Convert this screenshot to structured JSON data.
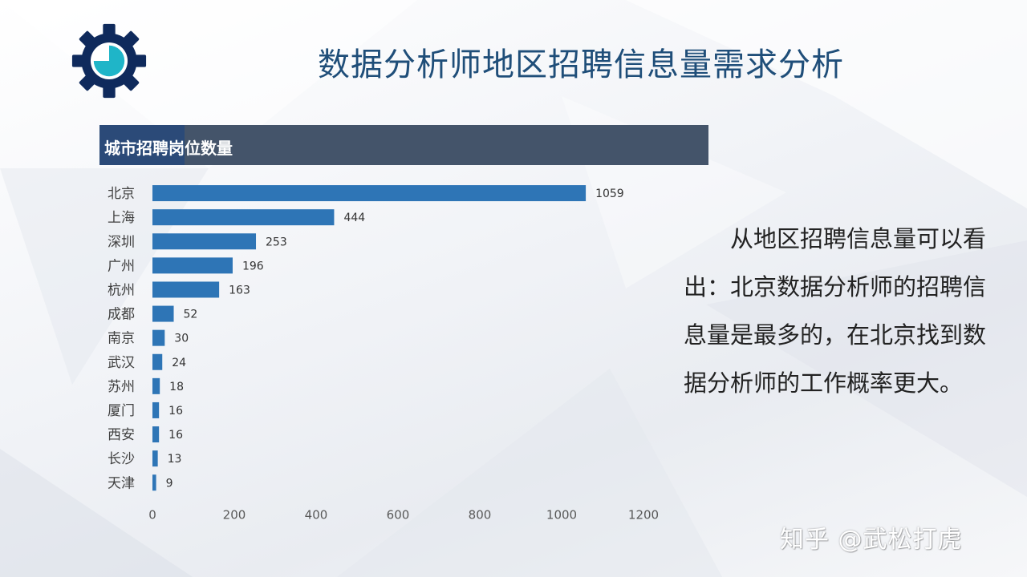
{
  "title": "数据分析师地区招聘信息量需求分析",
  "chart_header": "城市招聘岗位数量",
  "description": "从地区招聘信息量可以看出：北京数据分析师的招聘信息量是最多的，在北京找到数据分析师的工作概率更大。",
  "watermark": "知乎 @武松打虎",
  "colors": {
    "title": "#1f4e79",
    "bar": "#2e75b6",
    "header_bg": "#44546a",
    "header_accent": "#2b4a78",
    "logo": "#0f2a5c",
    "logo_inner": "#1fb5c8"
  },
  "icon": "gear-icon",
  "chart_data": {
    "type": "bar",
    "orientation": "horizontal",
    "categories": [
      "北京",
      "上海",
      "深圳",
      "广州",
      "杭州",
      "成都",
      "南京",
      "武汉",
      "苏州",
      "厦门",
      "西安",
      "长沙",
      "天津"
    ],
    "values": [
      1059,
      444,
      253,
      196,
      163,
      52,
      30,
      24,
      18,
      16,
      16,
      13,
      9
    ],
    "xticks": [
      "0",
      "200",
      "400",
      "600",
      "800",
      "1000",
      "1200"
    ],
    "xlim": [
      0,
      1200
    ],
    "title": "城市招聘岗位数量",
    "xlabel": "",
    "ylabel": "",
    "grid": false,
    "legend": "none",
    "data_labels": true
  }
}
